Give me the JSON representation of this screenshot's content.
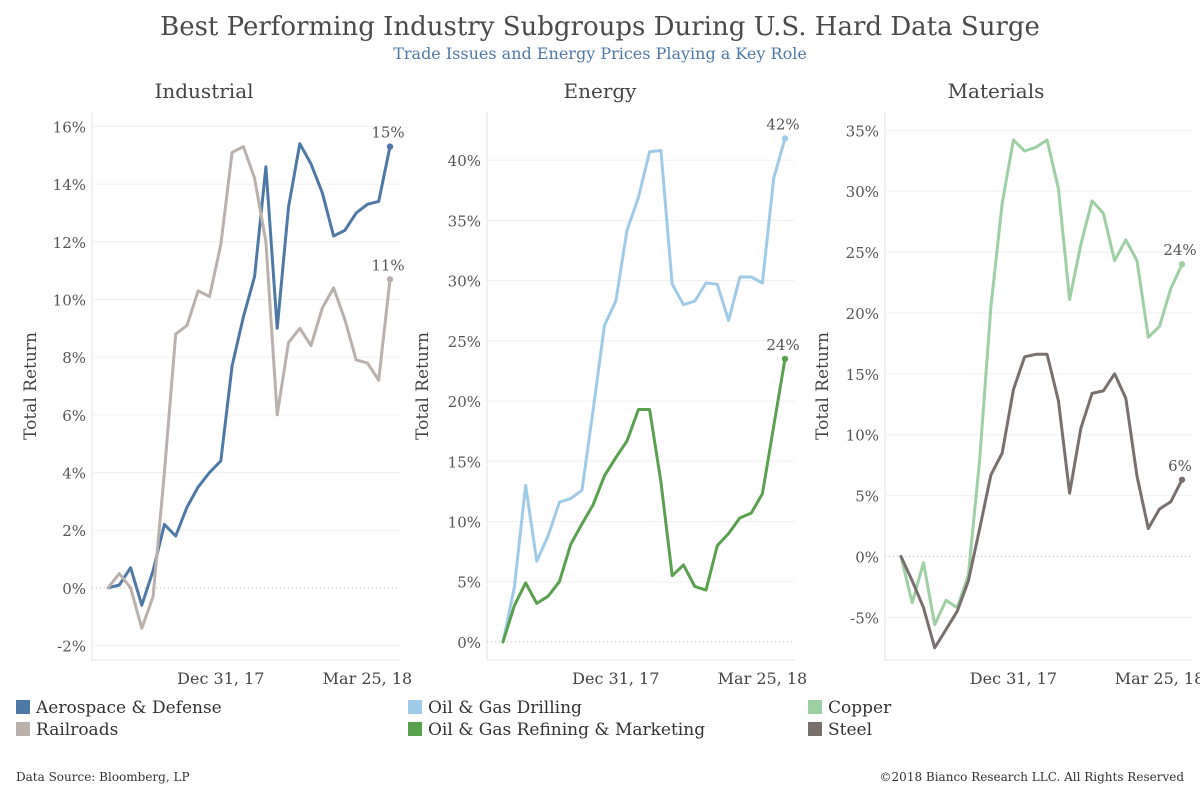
{
  "header": {
    "title": "Best Performing Industry Subgroups During U.S. Hard Data Surge",
    "subtitle": "Trade Issues and Energy Prices Playing a Key Role"
  },
  "footer": {
    "source": "Data Source: Bloomberg, LP",
    "copyright": "©2018 Bianco Research LLC. All Rights Reserved"
  },
  "chart_data": [
    {
      "type": "line",
      "title": "Industrial",
      "ylabel": "Total Return",
      "ylim": [
        -2.5,
        16.5
      ],
      "yticks": [
        -2,
        0,
        2,
        4,
        6,
        8,
        10,
        12,
        14,
        16
      ],
      "ytick_labels": [
        "-2%",
        "0%",
        "2%",
        "4%",
        "6%",
        "8%",
        "10%",
        "12%",
        "14%",
        "16%"
      ],
      "x_count": 26,
      "xticks": [
        {
          "index": 10,
          "label": "Dec 31, 17"
        },
        {
          "index": 23,
          "label": "Mar 25, 18"
        }
      ],
      "series": [
        {
          "name": "Aerospace & Defense",
          "color": "#4e79a7",
          "end_label": "15%",
          "values": [
            0.0,
            0.1,
            0.7,
            -0.6,
            0.6,
            2.2,
            1.8,
            2.8,
            3.5,
            4.0,
            4.4,
            7.7,
            9.4,
            10.8,
            14.6,
            9.0,
            13.2,
            15.4,
            14.7,
            13.7,
            12.2,
            12.4,
            13.0,
            13.3,
            13.4,
            15.3
          ]
        },
        {
          "name": "Railroads",
          "color": "#bab0ac",
          "end_label": "11%",
          "values": [
            0.0,
            0.5,
            0.0,
            -1.4,
            -0.3,
            4.0,
            8.8,
            9.1,
            10.3,
            10.1,
            11.9,
            15.1,
            15.3,
            14.2,
            12.0,
            6.0,
            8.5,
            9.0,
            8.4,
            9.7,
            10.4,
            9.3,
            7.9,
            7.8,
            7.2,
            10.7
          ]
        }
      ]
    },
    {
      "type": "line",
      "title": "Energy",
      "ylabel": "Total Return",
      "ylim": [
        -1.5,
        44
      ],
      "yticks": [
        0,
        5,
        10,
        15,
        20,
        25,
        30,
        35,
        40
      ],
      "ytick_labels": [
        "0%",
        "5%",
        "10%",
        "15%",
        "20%",
        "25%",
        "30%",
        "35%",
        "40%"
      ],
      "x_count": 26,
      "xticks": [
        {
          "index": 10,
          "label": "Dec 31, 17"
        },
        {
          "index": 23,
          "label": "Mar 25, 18"
        }
      ],
      "series": [
        {
          "name": "Oil & Gas Drilling",
          "color": "#a0cbe8",
          "end_label": "42%",
          "values": [
            0.0,
            4.5,
            13.0,
            6.7,
            8.8,
            11.6,
            11.9,
            12.6,
            19.3,
            26.3,
            28.3,
            34.2,
            36.9,
            40.7,
            40.8,
            29.7,
            28.0,
            28.3,
            29.8,
            29.7,
            26.7,
            30.3,
            30.3,
            29.8,
            38.5,
            41.8
          ]
        },
        {
          "name": "Oil & Gas Refining & Marketing",
          "color": "#59a14f",
          "end_label": "24%",
          "values": [
            0.0,
            3.0,
            4.9,
            3.2,
            3.8,
            5.0,
            8.1,
            9.8,
            11.4,
            13.8,
            15.3,
            16.7,
            19.3,
            19.3,
            13.3,
            5.5,
            6.4,
            4.6,
            4.3,
            8.0,
            9.0,
            10.3,
            10.7,
            12.3,
            17.9,
            23.5
          ]
        }
      ]
    },
    {
      "type": "line",
      "title": "Materials",
      "ylabel": "Total Return",
      "ylim": [
        -8.5,
        36.5
      ],
      "yticks": [
        -5,
        0,
        5,
        10,
        15,
        20,
        25,
        30,
        35
      ],
      "ytick_labels": [
        "-5%",
        "0%",
        "5%",
        "10%",
        "15%",
        "20%",
        "25%",
        "30%",
        "35%"
      ],
      "x_count": 26,
      "xticks": [
        {
          "index": 10,
          "label": "Dec 31, 17"
        },
        {
          "index": 23,
          "label": "Mar 25, 18"
        }
      ],
      "series": [
        {
          "name": "Copper",
          "color": "#9dd0a3",
          "end_label": "24%",
          "values": [
            0.0,
            -3.8,
            -0.5,
            -5.6,
            -3.6,
            -4.2,
            -1.5,
            8.0,
            20.5,
            29.0,
            34.2,
            33.3,
            33.6,
            34.2,
            30.2,
            21.1,
            25.6,
            29.2,
            28.2,
            24.3,
            26.0,
            24.3,
            18.0,
            18.9,
            22.0,
            24.0
          ]
        },
        {
          "name": "Steel",
          "color": "#79706e",
          "end_label": "6%",
          "values": [
            0.0,
            -2.0,
            -4.2,
            -7.5,
            -6.0,
            -4.5,
            -2.0,
            2.3,
            6.7,
            8.5,
            13.7,
            16.4,
            16.6,
            16.6,
            12.8,
            5.2,
            10.5,
            13.4,
            13.6,
            15.0,
            13.0,
            6.6,
            2.3,
            3.9,
            4.5,
            6.3
          ]
        }
      ]
    }
  ]
}
